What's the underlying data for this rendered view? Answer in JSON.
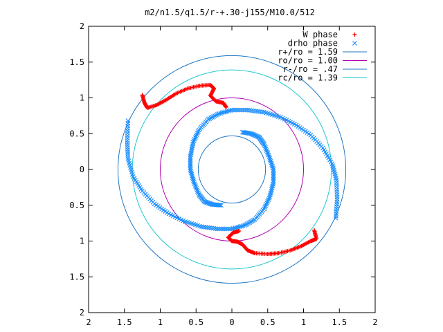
{
  "chart_data": {
    "type": "scatter",
    "title": "m2/n1.5/q1.5/r-+.30-j155/M10.0/512",
    "xlim": [
      -2,
      2
    ],
    "ylim": [
      -2,
      2
    ],
    "x_ticks": [
      -2,
      -1.5,
      -1,
      -0.5,
      0,
      0.5,
      1,
      1.5,
      2
    ],
    "y_ticks": [
      -2,
      -1.5,
      -1,
      -0.5,
      0,
      0.5,
      1,
      1.5,
      2
    ],
    "x_tick_labels": [
      "2",
      "1.5",
      "1",
      "0.5",
      "0",
      "0.5",
      "1",
      "1.5",
      "2"
    ],
    "y_tick_labels": [
      "2",
      "1.5",
      "1",
      "0.5",
      "0",
      "0.5",
      "1",
      "1.5",
      "2"
    ],
    "grid": false,
    "legend_position": "top-right",
    "series": [
      {
        "name": "W phase",
        "kind": "points",
        "marker": "plus",
        "color": "#ff0000",
        "arms": [
          {
            "points": [
              [
                -1.25,
                1.04
              ],
              [
                -1.22,
                0.93
              ],
              [
                -1.18,
                0.86
              ],
              [
                -1.05,
                0.9
              ],
              [
                -0.92,
                0.97
              ],
              [
                -0.78,
                1.06
              ],
              [
                -0.62,
                1.13
              ],
              [
                -0.45,
                1.17
              ],
              [
                -0.3,
                1.18
              ],
              [
                -0.25,
                1.13
              ],
              [
                -0.3,
                1.03
              ],
              [
                -0.22,
                0.95
              ],
              [
                -0.12,
                0.93
              ],
              [
                -0.08,
                0.87
              ]
            ]
          },
          {
            "points": [
              [
                1.15,
                -0.85
              ],
              [
                1.18,
                -0.97
              ],
              [
                1.1,
                -1.0
              ],
              [
                0.97,
                -1.07
              ],
              [
                0.82,
                -1.13
              ],
              [
                0.65,
                -1.17
              ],
              [
                0.5,
                -1.18
              ],
              [
                0.32,
                -1.17
              ],
              [
                0.22,
                -1.13
              ],
              [
                0.15,
                -1.05
              ],
              [
                0.08,
                -1.01
              ],
              [
                0.0,
                -1.0
              ],
              [
                -0.05,
                -0.95
              ],
              [
                0.02,
                -0.88
              ],
              [
                0.1,
                -0.86
              ]
            ]
          }
        ]
      },
      {
        "name": "drho phase",
        "kind": "points",
        "marker": "cross",
        "color": "#1e90ff",
        "arms": [
          {
            "points": [
              [
                -1.45,
                0.68
              ],
              [
                -1.46,
                0.4
              ],
              [
                -1.45,
                0.15
              ],
              [
                -1.38,
                -0.1
              ],
              [
                -1.25,
                -0.3
              ],
              [
                -1.08,
                -0.48
              ],
              [
                -0.88,
                -0.62
              ],
              [
                -0.65,
                -0.73
              ],
              [
                -0.42,
                -0.8
              ],
              [
                -0.2,
                -0.83
              ],
              [
                0.0,
                -0.83
              ],
              [
                0.18,
                -0.78
              ],
              [
                0.32,
                -0.7
              ],
              [
                0.45,
                -0.55
              ],
              [
                0.53,
                -0.38
              ],
              [
                0.58,
                -0.18
              ],
              [
                0.58,
                0.0
              ],
              [
                0.52,
                0.18
              ],
              [
                0.45,
                0.35
              ],
              [
                0.38,
                0.45
              ],
              [
                0.27,
                0.5
              ],
              [
                0.15,
                0.52
              ]
            ]
          },
          {
            "points": [
              [
                1.45,
                -0.68
              ],
              [
                1.47,
                -0.42
              ],
              [
                1.46,
                -0.15
              ],
              [
                1.4,
                0.08
              ],
              [
                1.27,
                0.3
              ],
              [
                1.1,
                0.48
              ],
              [
                0.9,
                0.62
              ],
              [
                0.68,
                0.73
              ],
              [
                0.45,
                0.8
              ],
              [
                0.22,
                0.83
              ],
              [
                0.0,
                0.83
              ],
              [
                -0.18,
                0.78
              ],
              [
                -0.33,
                0.7
              ],
              [
                -0.46,
                0.55
              ],
              [
                -0.54,
                0.38
              ],
              [
                -0.58,
                0.18
              ],
              [
                -0.58,
                0.0
              ],
              [
                -0.53,
                -0.18
              ],
              [
                -0.46,
                -0.35
              ],
              [
                -0.38,
                -0.45
              ],
              [
                -0.27,
                -0.49
              ],
              [
                -0.15,
                -0.5
              ]
            ]
          }
        ]
      },
      {
        "name": "r+/ro = 1.59",
        "kind": "circle",
        "radius": 1.59,
        "color": "#1f77c4"
      },
      {
        "name": "ro/ro = 1.00",
        "kind": "circle",
        "radius": 1.0,
        "color": "#b000b0"
      },
      {
        "name": "r-/ro = .47",
        "kind": "circle",
        "radius": 0.47,
        "color": "#1f77c4"
      },
      {
        "name": "rc/ro = 1.39",
        "kind": "circle",
        "radius": 1.39,
        "color": "#20c8d0"
      }
    ]
  }
}
